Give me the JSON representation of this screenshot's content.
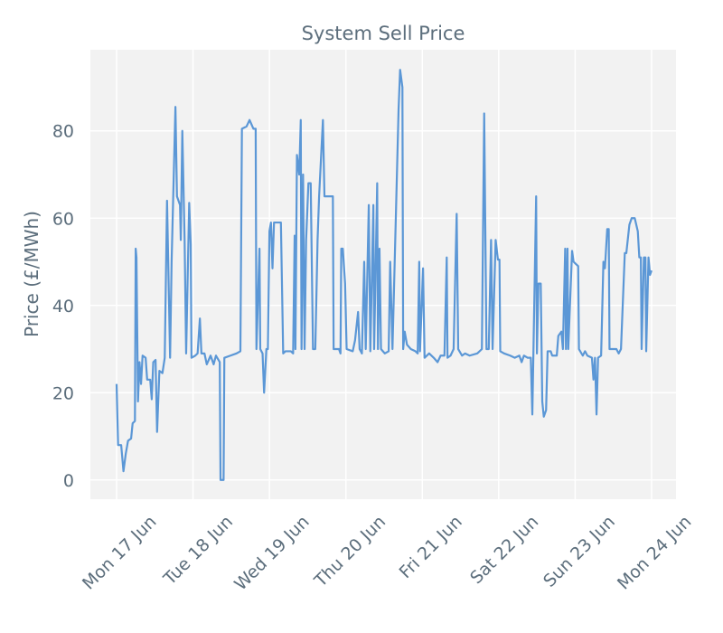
{
  "chart_data": {
    "type": "line",
    "title": "System Sell Price",
    "y_label": "Price (£/MWh)",
    "color": "#5b97d6",
    "grid": true,
    "xlim": [
      16.657,
      24.32
    ],
    "ylim": [
      -4.4,
      98.6
    ],
    "yticks": [
      0,
      20,
      40,
      60,
      80
    ],
    "xticks": [
      {
        "value": 17,
        "label": "Mon 17 Jun"
      },
      {
        "value": 18,
        "label": "Tue 18 Jun"
      },
      {
        "value": 19,
        "label": "Wed 19 Jun"
      },
      {
        "value": 20,
        "label": "Thu 20 Jun"
      },
      {
        "value": 21,
        "label": "Fri 21 Jun"
      },
      {
        "value": 22,
        "label": "Sat 22 Jun"
      },
      {
        "value": 23,
        "label": "Sun 23 Jun"
      },
      {
        "value": 24,
        "label": "Mon 24 Jun"
      }
    ],
    "x": [
      17.0,
      17.02,
      17.06,
      17.09,
      17.12,
      17.15,
      17.19,
      17.21,
      17.24,
      17.25,
      17.26,
      17.28,
      17.3,
      17.32,
      17.34,
      17.38,
      17.4,
      17.44,
      17.46,
      17.48,
      17.51,
      17.53,
      17.56,
      17.6,
      17.63,
      17.66,
      17.7,
      17.72,
      17.77,
      17.79,
      17.83,
      17.84,
      17.86,
      17.89,
      17.91,
      17.95,
      17.97,
      17.98,
      18.03,
      18.06,
      18.09,
      18.11,
      18.15,
      18.18,
      18.23,
      18.27,
      18.3,
      18.35,
      18.36,
      18.4,
      18.41,
      18.49,
      18.57,
      18.62,
      18.64,
      18.7,
      18.74,
      18.79,
      18.82,
      18.83,
      18.87,
      18.88,
      18.91,
      18.93,
      18.96,
      18.98,
      19.0,
      19.02,
      19.04,
      19.06,
      19.15,
      19.18,
      19.21,
      19.28,
      19.31,
      19.33,
      19.34,
      19.36,
      19.39,
      19.41,
      19.42,
      19.44,
      19.46,
      19.48,
      19.51,
      19.54,
      19.57,
      19.6,
      19.63,
      19.65,
      19.7,
      19.72,
      19.83,
      19.84,
      19.91,
      19.93,
      19.94,
      19.96,
      19.99,
      20.01,
      20.09,
      20.12,
      20.16,
      20.18,
      20.21,
      20.24,
      20.26,
      20.3,
      20.32,
      20.36,
      20.37,
      20.41,
      20.42,
      20.44,
      20.46,
      20.51,
      20.56,
      20.58,
      20.61,
      20.69,
      20.71,
      20.74,
      20.75,
      20.77,
      20.8,
      20.85,
      20.91,
      20.94,
      20.96,
      20.97,
      21.01,
      21.03,
      21.09,
      21.15,
      21.2,
      21.24,
      21.29,
      21.32,
      21.33,
      21.37,
      21.41,
      21.45,
      21.47,
      21.52,
      21.56,
      21.62,
      21.72,
      21.78,
      21.81,
      21.84,
      21.87,
      21.9,
      21.92,
      21.96,
      21.99,
      22.01,
      22.02,
      22.07,
      22.15,
      22.21,
      22.27,
      22.3,
      22.33,
      22.38,
      22.42,
      22.44,
      22.49,
      22.5,
      22.52,
      22.55,
      22.57,
      22.59,
      22.62,
      22.64,
      22.68,
      22.7,
      22.76,
      22.78,
      22.82,
      22.84,
      22.87,
      22.88,
      22.9,
      22.91,
      22.96,
      22.98,
      23.04,
      23.05,
      23.1,
      23.13,
      23.16,
      23.22,
      23.24,
      23.26,
      23.28,
      23.3,
      23.34,
      23.37,
      23.39,
      23.42,
      23.44,
      23.45,
      23.54,
      23.57,
      23.6,
      23.65,
      23.67,
      23.71,
      23.74,
      23.78,
      23.82,
      23.84,
      23.86,
      23.87,
      23.9,
      23.92,
      23.93,
      23.96,
      23.98,
      24.0
    ],
    "values": [
      22,
      8,
      8,
      2,
      6,
      9,
      9.5,
      13,
      13.5,
      53,
      51,
      18,
      27,
      22,
      28.5,
      28,
      23,
      23,
      18.5,
      27,
      27.5,
      11,
      25,
      24.5,
      28,
      64,
      28,
      50,
      85.5,
      65,
      63,
      55,
      80,
      55,
      29,
      63.5,
      54,
      28,
      28.5,
      29,
      37,
      29,
      29,
      26.5,
      28.5,
      26.5,
      28.5,
      27,
      0,
      0,
      28,
      28.5,
      29,
      29.5,
      80.5,
      81,
      82.5,
      80.5,
      80.5,
      30,
      53,
      30,
      29,
      20,
      30,
      30,
      57,
      59,
      48.5,
      59,
      59,
      29,
      29.5,
      29.5,
      29,
      56,
      30,
      74.5,
      70,
      82.5,
      30,
      70,
      30,
      55,
      68,
      68,
      30,
      30,
      55,
      65,
      82.5,
      65,
      65,
      30,
      30,
      29,
      53,
      53,
      45,
      30,
      29.5,
      32,
      38.5,
      30,
      29,
      50,
      30,
      63,
      29.5,
      63,
      30,
      68,
      30,
      53,
      30,
      29,
      29.5,
      50,
      30,
      85,
      94,
      90,
      30,
      34,
      31,
      30,
      29.5,
      29,
      50,
      29.5,
      48.5,
      28,
      29,
      28,
      27,
      28.5,
      28.5,
      51,
      28,
      28.5,
      30,
      61,
      30,
      28.5,
      29,
      28.5,
      29,
      30,
      84,
      30,
      30,
      55,
      30,
      55,
      50.5,
      50.5,
      29.5,
      29,
      28.5,
      28,
      28.5,
      27,
      28.5,
      28,
      28,
      15,
      65,
      29,
      45,
      45,
      18,
      14.5,
      16,
      29.5,
      29.5,
      28.5,
      28.5,
      33,
      34,
      30,
      53,
      30,
      53,
      30,
      52.5,
      50,
      49,
      30,
      28.5,
      29.5,
      28.5,
      28,
      23,
      28,
      15,
      28,
      28.5,
      50,
      48.5,
      57.5,
      57.5,
      30,
      30,
      29,
      30,
      52,
      52,
      58.5,
      60,
      60,
      57,
      51,
      51,
      30,
      51,
      51,
      29.5,
      51,
      47,
      48
    ]
  }
}
